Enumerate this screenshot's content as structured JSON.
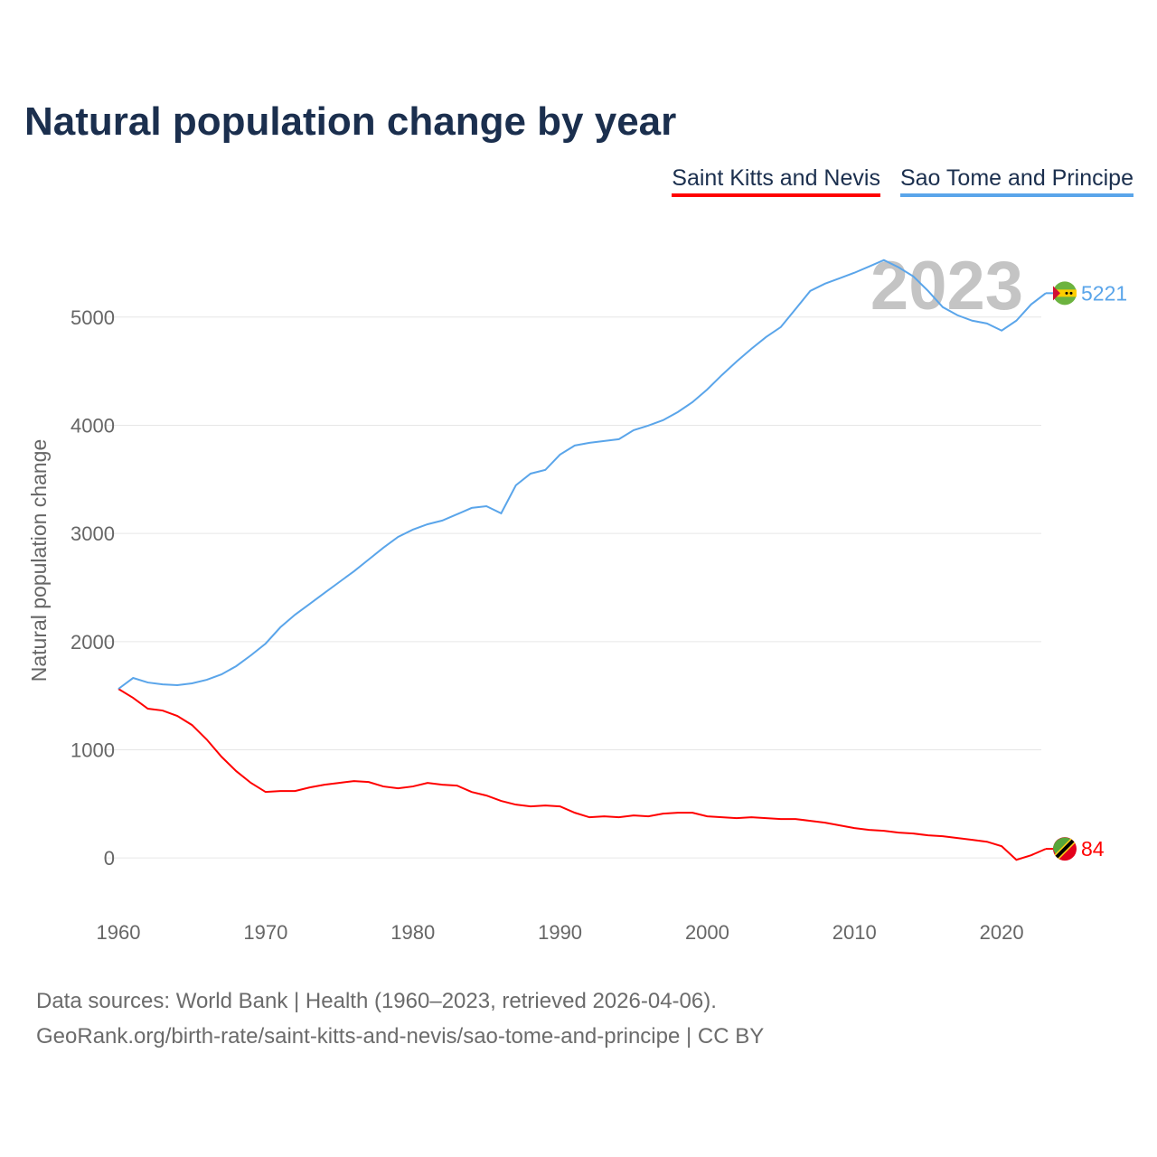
{
  "chart_data": {
    "type": "line",
    "title": "Natural population change by year",
    "xlabel": "",
    "ylabel": "Natural population change",
    "xlim": [
      1960,
      2023
    ],
    "ylim": [
      -500,
      5600
    ],
    "grid": true,
    "legend_position": "top-right",
    "year_watermark": "2023",
    "x_ticks": [
      "1960",
      "1970",
      "1980",
      "1990",
      "2000",
      "2010",
      "2020"
    ],
    "y_ticks": [
      "0",
      "1000",
      "2000",
      "3000",
      "4000",
      "5000"
    ],
    "x": [
      1960,
      1961,
      1962,
      1963,
      1964,
      1965,
      1966,
      1967,
      1968,
      1969,
      1970,
      1971,
      1972,
      1973,
      1974,
      1975,
      1976,
      1977,
      1978,
      1979,
      1980,
      1981,
      1982,
      1983,
      1984,
      1985,
      1986,
      1987,
      1988,
      1989,
      1990,
      1991,
      1992,
      1993,
      1994,
      1995,
      1996,
      1997,
      1998,
      1999,
      2000,
      2001,
      2002,
      2003,
      2004,
      2005,
      2006,
      2007,
      2008,
      2009,
      2010,
      2011,
      2012,
      2013,
      2014,
      2015,
      2016,
      2017,
      2018,
      2019,
      2020,
      2021,
      2022,
      2023
    ],
    "series": [
      {
        "name": "Saint Kitts and Nevis",
        "color": "#ff0000",
        "end_label": "84",
        "values": [
          1563,
          1480,
          1380,
          1363,
          1313,
          1229,
          1095,
          936,
          803,
          694,
          610,
          619,
          619,
          652,
          677,
          694,
          711,
          702,
          661,
          644,
          661,
          694,
          677,
          669,
          610,
          577,
          527,
          493,
          477,
          485,
          477,
          418,
          376,
          385,
          376,
          393,
          385,
          410,
          418,
          418,
          385,
          376,
          368,
          376,
          368,
          360,
          360,
          343,
          326,
          301,
          276,
          259,
          251,
          234,
          226,
          209,
          201,
          184,
          167,
          150,
          109,
          -17,
          25,
          84
        ]
      },
      {
        "name": "Sao Tome and Principe",
        "color": "#5aa5ea",
        "end_label": "5221",
        "values": [
          1563,
          1664,
          1622,
          1605,
          1597,
          1614,
          1647,
          1697,
          1773,
          1873,
          1982,
          2132,
          2249,
          2349,
          2450,
          2550,
          2650,
          2759,
          2868,
          2968,
          3035,
          3085,
          3119,
          3177,
          3236,
          3252,
          3186,
          3445,
          3553,
          3587,
          3729,
          3813,
          3838,
          3855,
          3871,
          3955,
          3997,
          4047,
          4122,
          4214,
          4331,
          4465,
          4590,
          4707,
          4816,
          4908,
          5075,
          5242,
          5309,
          5359,
          5410,
          5468,
          5527,
          5460,
          5376,
          5242,
          5092,
          5017,
          4967,
          4941,
          4875,
          4967,
          5117,
          5221
        ]
      }
    ]
  },
  "source": {
    "line1": "Data sources: World Bank | Health (1960–2023, retrieved 2026-04-06).",
    "line2": "GeoRank.org/birth-rate/saint-kitts-and-nevis/sao-tome-and-principe | CC BY"
  }
}
